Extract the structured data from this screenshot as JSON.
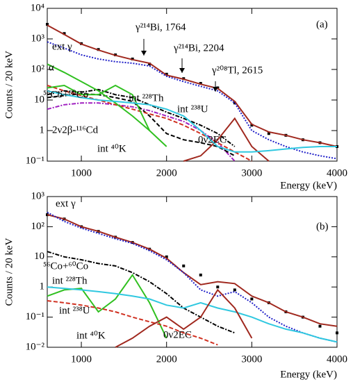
{
  "chart_data": [
    {
      "type": "line",
      "panel": "(a)",
      "xlabel": "Energy (keV)",
      "ylabel": "Counts / 20 keV",
      "log_y": true,
      "x": [
        600,
        800,
        1000,
        1200,
        1400,
        1600,
        1800,
        2000,
        2200,
        2400,
        2600,
        2800,
        3000,
        3200,
        3400,
        3600,
        3800,
        4000
      ],
      "xlim": [
        600,
        4000
      ],
      "xticks": [
        1000,
        2000,
        3000,
        4000
      ],
      "ylim": [
        0.1,
        10000
      ],
      "yticks": [
        {
          "value": 0.1,
          "label": "10⁻¹"
        },
        1,
        10,
        {
          "value": 100,
          "label": "10²"
        },
        {
          "value": 1000,
          "label": "10³"
        },
        {
          "value": 10000,
          "label": "10⁴"
        }
      ],
      "annotations": [
        "γ²¹⁴Bi, 1764",
        "γ²¹⁴Bi, 2204",
        "γ²⁰⁸Tl, 2615",
        "ext γ",
        "α",
        "⁵⁶Co+⁶⁰Co",
        "int ²²⁸Th",
        "int ²³⁸U",
        "2ν2β-¹¹⁶Cd",
        "int ⁴⁰K",
        "0ν2EC"
      ],
      "series": [
        {
          "color": "#000000",
          "style": "points",
          "values": [
            3000,
            1500,
            700,
            450,
            300,
            220,
            150,
            70,
            50,
            35,
            25,
            8,
            1.5,
            0.8,
            0.7,
            0.5,
            0.4,
            0.3
          ]
        },
        {
          "color": "#a0281e",
          "style": "solid",
          "values": [
            2800,
            1400,
            680,
            430,
            290,
            210,
            160,
            65,
            48,
            33,
            24,
            9,
            1.6,
            0.9,
            0.7,
            0.5,
            0.4,
            0.3
          ]
        },
        {
          "color": "#1e1ec8",
          "style": "dotted",
          "values": [
            800,
            500,
            300,
            220,
            180,
            160,
            130,
            60,
            40,
            28,
            20,
            8,
            1,
            0.5,
            0.3,
            0.2,
            0.15,
            0.12
          ]
        },
        {
          "color": "#a020c0",
          "style": "dashdot",
          "values": [
            5,
            7,
            8,
            8,
            7,
            6,
            4.5,
            3,
            2,
            1,
            0.4,
            0.1,
            null,
            null,
            null,
            null,
            null,
            null
          ]
        },
        {
          "color": "#000000",
          "style": "dashed",
          "values": [
            12,
            14,
            16,
            15,
            12,
            9,
            3,
            0.8,
            0.5,
            0.4,
            0.3,
            0.15,
            null,
            null,
            null,
            null,
            null,
            null
          ]
        },
        {
          "color": "#d03020",
          "style": "dashed",
          "values": [
            30,
            20,
            14,
            10,
            7,
            5,
            3.5,
            2.5,
            1.5,
            0.8,
            0.4,
            0.2,
            0.1,
            null,
            null,
            null,
            null,
            null
          ]
        },
        {
          "color": "#000000",
          "style": "dashdot",
          "values": [
            15,
            20,
            18,
            22,
            15,
            12,
            7,
            4,
            2.5,
            1.5,
            0.8,
            0.3,
            null,
            null,
            null,
            null,
            null,
            null
          ]
        },
        {
          "color": "#30c020",
          "style": "solid",
          "values": [
            150,
            80,
            40,
            20,
            8,
            3,
            1,
            0.3,
            null,
            null,
            null,
            null,
            null,
            null,
            null,
            null,
            null,
            null
          ]
        },
        {
          "color": "#30c020",
          "style": "solid",
          "values": [
            25,
            30,
            15,
            15,
            30,
            15,
            1,
            null,
            null,
            null,
            null,
            null,
            null,
            null,
            null,
            null,
            null,
            null
          ]
        },
        {
          "color": "#a0281e",
          "style": "solid",
          "values": [
            null,
            null,
            null,
            null,
            null,
            null,
            null,
            null,
            0.1,
            0.15,
            0.5,
            2.5,
            0.3,
            0.1,
            null,
            null,
            null,
            null
          ]
        },
        {
          "color": "#30c8e0",
          "style": "solid",
          "values": [
            20,
            15,
            12,
            10,
            9,
            8,
            7,
            5,
            3,
            1,
            0.3,
            0.2,
            0.2,
            0.22,
            0.25,
            0.28,
            0.3,
            0.3
          ]
        }
      ]
    },
    {
      "type": "line",
      "panel": "(b)",
      "xlabel": "Energy (keV)",
      "ylabel": "Counts / 20 keV",
      "log_y": true,
      "x": [
        600,
        800,
        1000,
        1200,
        1400,
        1600,
        1800,
        2000,
        2200,
        2400,
        2600,
        2800,
        3000,
        3200,
        3400,
        3600,
        3800,
        4000
      ],
      "xlim": [
        600,
        4000
      ],
      "xticks": [
        1000,
        2000,
        3000,
        4000
      ],
      "ylim": [
        0.01,
        1000
      ],
      "yticks": [
        {
          "value": 0.01,
          "label": "10⁻²"
        },
        {
          "value": 0.1,
          "label": "10⁻¹"
        },
        1,
        10,
        {
          "value": 100,
          "label": "10²"
        },
        {
          "value": 1000,
          "label": "10³"
        }
      ],
      "annotations": [
        "ext γ",
        "⁵⁶Co+⁶⁰Co",
        "int ²²⁸Th",
        "int ²³⁸U",
        "int ⁴⁰K",
        "0ν2EC"
      ],
      "series": [
        {
          "color": "#000000",
          "style": "points",
          "values": [
            250,
            180,
            100,
            70,
            45,
            30,
            18,
            10,
            5,
            2.5,
            1,
            0.8,
            0.4,
            0.3,
            0.15,
            0.1,
            0.05,
            0.03
          ]
        },
        {
          "color": "#a0281e",
          "style": "solid",
          "values": [
            250,
            180,
            100,
            70,
            45,
            30,
            18,
            9,
            3,
            1.2,
            1.5,
            1.3,
            0.5,
            0.3,
            0.15,
            0.1,
            0.06,
            0.05
          ]
        },
        {
          "color": "#1e1ec8",
          "style": "dotted",
          "values": [
            300,
            150,
            90,
            60,
            40,
            28,
            16,
            8,
            3,
            0.8,
            0.5,
            0.7,
            0.3,
            0.1,
            0.05,
            0.03,
            0.02,
            0.015
          ]
        },
        {
          "color": "#000000",
          "style": "dashdot",
          "values": [
            15,
            10,
            8,
            6,
            5,
            3,
            1.5,
            0.6,
            0.2,
            0.1,
            0.05,
            0.03,
            null,
            null,
            null,
            null,
            null,
            null
          ]
        },
        {
          "color": "#30c020",
          "style": "solid",
          "values": [
            0.5,
            0.8,
            0.9,
            0.15,
            0.4,
            2.5,
            0.3,
            0.02,
            null,
            null,
            null,
            null,
            null,
            null,
            null,
            null,
            null,
            null
          ]
        },
        {
          "color": "#d03020",
          "style": "dashed",
          "values": [
            0.35,
            0.3,
            0.25,
            0.2,
            0.15,
            0.1,
            0.07,
            0.05,
            0.03,
            0.02,
            0.012,
            null,
            null,
            null,
            null,
            null,
            null,
            null
          ]
        },
        {
          "color": "#30c8e0",
          "style": "solid",
          "values": [
            1,
            0.9,
            0.8,
            0.7,
            0.6,
            0.5,
            0.4,
            0.25,
            0.2,
            0.3,
            0.2,
            0.15,
            0.1,
            0.06,
            0.04,
            0.03,
            0.02,
            0.015
          ]
        },
        {
          "color": "#a0281e",
          "style": "solid",
          "values": [
            null,
            null,
            null,
            null,
            0.01,
            0.02,
            0.05,
            0.1,
            0.04,
            0.1,
            0.8,
            0.2,
            0.02,
            null,
            null,
            null,
            null,
            null
          ]
        }
      ]
    }
  ]
}
